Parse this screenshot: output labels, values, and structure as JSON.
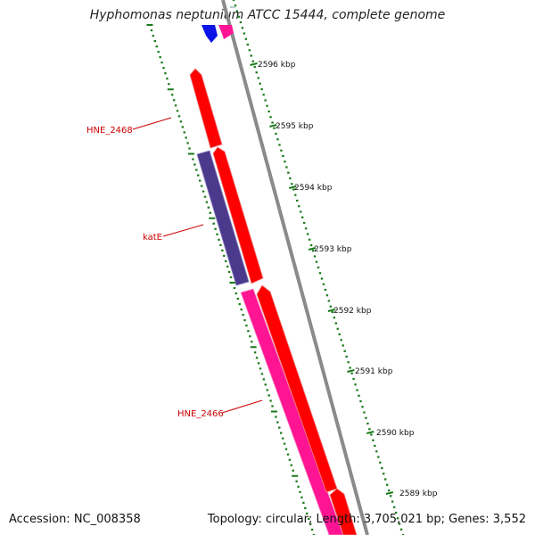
{
  "title": "Hyphomonas neptunium ATCC 15444, complete genome",
  "footer": {
    "accession": "Accession: NC_008358",
    "topology": "Topology: circular; Length: 3,705,021 bp; Genes: 3,552"
  },
  "ruler": {
    "ticks": [
      "2596 kbp",
      "2595 kbp",
      "2594 kbp",
      "2593 kbp",
      "2592 kbp",
      "2591 kbp",
      "2590 kbp",
      "2589 kbp"
    ]
  },
  "gene_labels": {
    "hne_2468": "HNE_2468",
    "kate": "katE",
    "hne_2466": "HNE_2466"
  },
  "colors": {
    "backbone": "#8a8a8a",
    "cds_forward": "#ff0000",
    "cds_reverse_pink": "#ff1493",
    "cds_purple": "#4b3a8c",
    "cds_blue": "#0a14e6",
    "gc_dots": "#1a7a1a",
    "label_red": "#cc0000"
  }
}
